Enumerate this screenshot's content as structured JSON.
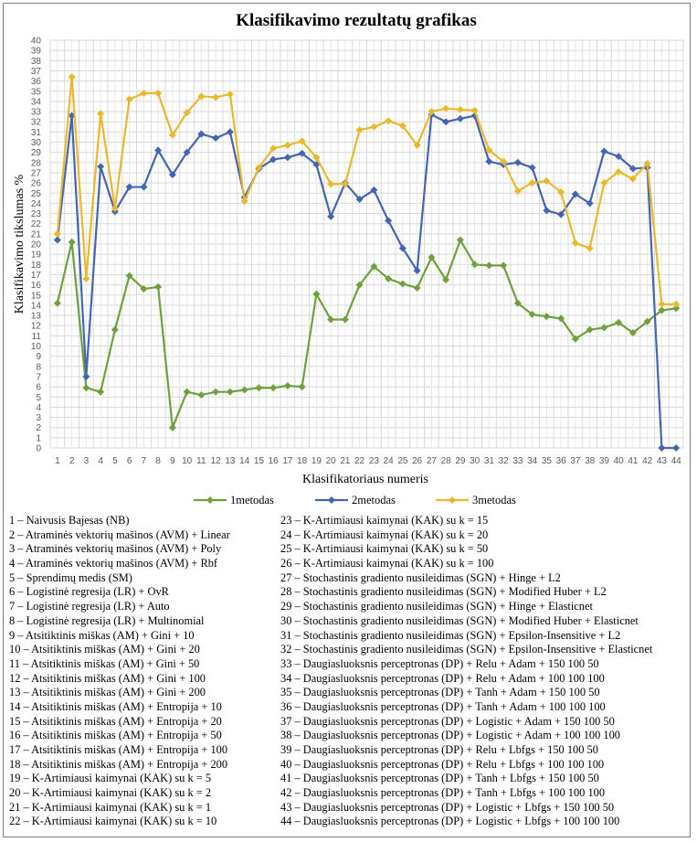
{
  "chart_data": {
    "type": "line",
    "title": "Klasifikavimo rezultatų grafikas",
    "xlabel": "Klasifikatoriaus numeris",
    "ylabel": "Klasifikavimo tikslumas %",
    "ylim": [
      0,
      40
    ],
    "grid": true,
    "legend_position": "bottom",
    "x": [
      1,
      2,
      3,
      4,
      5,
      6,
      7,
      8,
      9,
      10,
      11,
      12,
      13,
      14,
      15,
      16,
      17,
      18,
      19,
      20,
      21,
      22,
      23,
      24,
      25,
      26,
      27,
      28,
      29,
      30,
      31,
      32,
      33,
      34,
      35,
      36,
      37,
      38,
      39,
      40,
      41,
      42,
      43,
      44
    ],
    "series": [
      {
        "name": "1metodas",
        "color": "#70a03c",
        "values": [
          14.2,
          20.2,
          5.9,
          5.5,
          11.6,
          16.9,
          15.6,
          15.8,
          2.0,
          5.5,
          5.2,
          5.5,
          5.5,
          5.7,
          5.9,
          5.9,
          6.1,
          6.0,
          15.1,
          12.6,
          12.6,
          16.0,
          17.8,
          16.6,
          16.1,
          15.7,
          18.7,
          16.5,
          20.4,
          18.0,
          17.9,
          17.9,
          14.2,
          13.1,
          12.9,
          12.7,
          10.7,
          11.6,
          11.8,
          12.3,
          11.3,
          12.4,
          13.5,
          13.7
        ]
      },
      {
        "name": "2metodas",
        "color": "#4464b4",
        "values": [
          20.4,
          32.6,
          7.0,
          27.6,
          23.2,
          25.6,
          25.6,
          29.2,
          26.8,
          29.0,
          30.8,
          30.4,
          31.0,
          24.6,
          27.4,
          28.3,
          28.5,
          28.9,
          27.8,
          22.7,
          26.0,
          24.4,
          25.3,
          22.3,
          19.6,
          17.4,
          32.7,
          32.0,
          32.3,
          32.6,
          28.1,
          27.8,
          28.0,
          27.5,
          23.3,
          22.9,
          24.9,
          24.0,
          29.1,
          28.6,
          27.4,
          27.5,
          0,
          0
        ]
      },
      {
        "name": "3metodas",
        "color": "#ebb82c",
        "values": [
          21.0,
          36.4,
          16.6,
          32.8,
          23.5,
          34.2,
          34.8,
          34.8,
          30.7,
          32.9,
          34.5,
          34.4,
          34.7,
          24.2,
          27.5,
          29.4,
          29.7,
          30.1,
          28.5,
          25.9,
          25.9,
          31.2,
          31.5,
          32.1,
          31.6,
          29.7,
          33.0,
          33.3,
          33.2,
          33.1,
          29.2,
          28.1,
          25.2,
          26.0,
          26.2,
          25.1,
          20.1,
          19.6,
          26.0,
          27.1,
          26.4,
          27.9,
          14.1,
          14.1
        ]
      }
    ]
  },
  "classifiers": [
    "1 – Naivusis Bajesas (NB)",
    "2 – Atraminės vektorių mašinos (AVM) + Linear",
    "3 – Atraminės vektorių mašinos (AVM) + Poly",
    "4 – Atraminės vektorių mašinos (AVM) + Rbf",
    "5 – Sprendimų medis (SM)",
    "6 – Logistinė regresija (LR) + OvR",
    "7 – Logistinė regresija (LR) + Auto",
    "8 – Logistinė regresija (LR) + Multinomial",
    "9 – Atsitiktinis miškas (AM) + Gini + 10",
    "10 – Atsitiktinis miškas (AM) + Gini + 20",
    "11 – Atsitiktinis miškas (AM) + Gini + 50",
    "12 – Atsitiktinis miškas (AM) + Gini + 100",
    "13 – Atsitiktinis miškas (AM) + Gini + 200",
    "14 – Atsitiktinis miškas (AM) + Entropija + 10",
    "15 – Atsitiktinis miškas (AM) + Entropija + 20",
    "16 – Atsitiktinis miškas (AM) + Entropija + 50",
    "17 – Atsitiktinis miškas (AM) + Entropija + 100",
    "18 – Atsitiktinis miškas (AM) + Entropija + 200",
    "19 – K-Artimiausi kaimynai (KAK) su k = 5",
    "20 – K-Artimiausi kaimynai (KAK) su k = 2",
    "21 – K-Artimiausi kaimynai (KAK) su k = 1",
    "22 – K-Artimiausi kaimynai (KAK) su k = 10",
    "23 – K-Artimiausi kaimynai (KAK) su k = 15",
    "24 – K-Artimiausi kaimynai (KAK) su k = 20",
    "25 – K-Artimiausi kaimynai (KAK) su k = 50",
    "26 – K-Artimiausi kaimynai (KAK) su k = 100",
    "27 – Stochastinis gradiento nusileidimas (SGN) + Hinge + L2",
    "28 – Stochastinis gradiento nusileidimas (SGN) + Modified Huber + L2",
    "29 – Stochastinis gradiento nusileidimas (SGN) + Hinge + Elasticnet",
    "30 – Stochastinis gradiento nusileidimas (SGN) + Modified Huber + Elasticnet",
    "31 – Stochastinis gradiento nusileidimas (SGN) + Epsilon-Insensitive + L2",
    "32 – Stochastinis gradiento nusileidimas (SGN) + Epsilon-Insensitive + Elasticnet",
    "33 – Daugiasluoksnis perceptronas (DP) + Relu + Adam + 150 100 50",
    "34 – Daugiasluoksnis perceptronas (DP) + Relu + Adam + 100 100 100",
    "35 – Daugiasluoksnis perceptronas (DP) + Tanh + Adam + 150 100 50",
    "36 – Daugiasluoksnis perceptronas (DP) + Tanh + Adam + 100 100 100",
    "37 – Daugiasluoksnis perceptronas (DP) + Logistic + Adam + 150 100 50",
    "38 – Daugiasluoksnis perceptronas (DP) + Logistic + Adam + 100 100 100",
    "39 – Daugiasluoksnis perceptronas (DP) + Relu + Lbfgs + 150 100 50",
    "40 – Daugiasluoksnis perceptronas (DP) + Relu + Lbfgs + 100 100 100",
    "41 – Daugiasluoksnis perceptronas (DP) + Tanh + Lbfgs + 150 100 50",
    "42 – Daugiasluoksnis perceptronas (DP) + Tanh + Lbfgs + 100 100 100",
    "43 – Daugiasluoksnis perceptronas (DP) + Logistic + Lbfgs + 150 100 50",
    "44 – Daugiasluoksnis perceptronas (DP) + Logistic + Lbfgs + 100 100 100"
  ]
}
